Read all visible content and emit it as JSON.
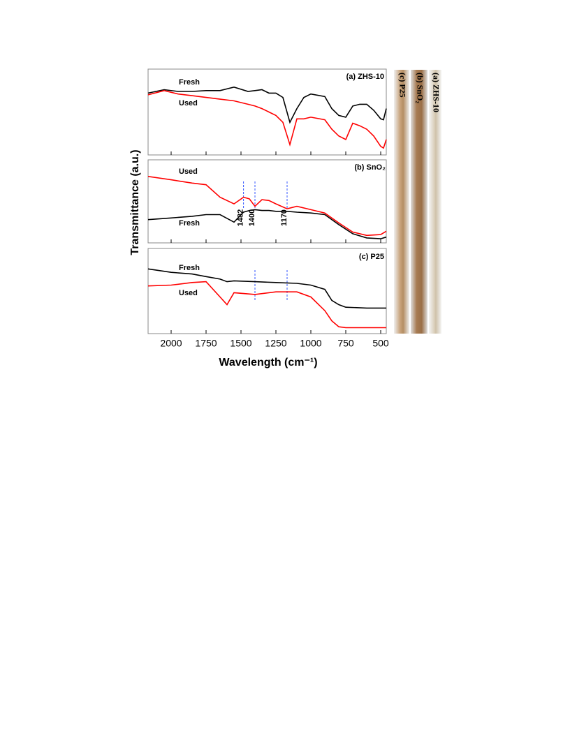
{
  "figure": {
    "xlabel": "Wavelength (cm⁻¹)",
    "ylabel": "Transmittance (a.u.)"
  },
  "photos": {
    "labels": [
      "(c) P25",
      "(b) SnO₂",
      "(a) ZHS-10"
    ]
  },
  "chart_data": [
    {
      "type": "line",
      "title": "(a) ZHS-10",
      "x": [
        2165,
        2050,
        1950,
        1850,
        1750,
        1650,
        1550,
        1450,
        1400,
        1350,
        1300,
        1250,
        1200,
        1150,
        1100,
        1050,
        1000,
        900,
        850,
        800,
        750,
        700,
        650,
        600,
        550,
        500,
        480,
        460
      ],
      "series": [
        {
          "name": "Fresh",
          "color": "#000000",
          "values": [
            0.72,
            0.76,
            0.74,
            0.74,
            0.75,
            0.75,
            0.79,
            0.74,
            0.75,
            0.76,
            0.72,
            0.72,
            0.67,
            0.38,
            0.54,
            0.67,
            0.71,
            0.68,
            0.54,
            0.46,
            0.44,
            0.57,
            0.59,
            0.59,
            0.52,
            0.42,
            0.41,
            0.54
          ]
        },
        {
          "name": "Used",
          "color": "#ff0000",
          "values": [
            0.7,
            0.75,
            0.71,
            0.69,
            0.67,
            0.65,
            0.63,
            0.59,
            0.57,
            0.54,
            0.5,
            0.46,
            0.38,
            0.12,
            0.42,
            0.42,
            0.44,
            0.41,
            0.3,
            0.22,
            0.18,
            0.37,
            0.34,
            0.3,
            0.22,
            0.1,
            0.08,
            0.18
          ]
        }
      ],
      "xlim": [
        2165,
        460
      ],
      "ylim": [
        0,
        1
      ],
      "xticks": [
        2000,
        1750,
        1500,
        1250,
        1000,
        750,
        500
      ]
    },
    {
      "type": "line",
      "title": "(b) SnO₂",
      "x": [
        2165,
        2000,
        1850,
        1750,
        1650,
        1550,
        1482,
        1440,
        1400,
        1350,
        1300,
        1250,
        1170,
        1100,
        1000,
        900,
        800,
        700,
        600,
        500,
        460
      ],
      "series": [
        {
          "name": "Used",
          "color": "#ff0000",
          "values": [
            0.8,
            0.76,
            0.72,
            0.7,
            0.55,
            0.47,
            0.55,
            0.53,
            0.44,
            0.52,
            0.51,
            0.47,
            0.41,
            0.44,
            0.4,
            0.36,
            0.24,
            0.13,
            0.09,
            0.1,
            0.14
          ]
        },
        {
          "name": "Fresh",
          "color": "#000000",
          "values": [
            0.28,
            0.3,
            0.32,
            0.34,
            0.34,
            0.25,
            0.37,
            0.39,
            0.4,
            0.39,
            0.39,
            0.38,
            0.38,
            0.37,
            0.36,
            0.34,
            0.22,
            0.11,
            0.06,
            0.05,
            0.07
          ]
        }
      ],
      "markers": [
        1482,
        1400,
        1170
      ],
      "xlim": [
        2165,
        460
      ],
      "ylim": [
        0,
        1
      ],
      "xticks": [
        2000,
        1750,
        1500,
        1250,
        1000,
        750,
        500
      ]
    },
    {
      "type": "line",
      "title": "(c) P25",
      "x": [
        2165,
        2000,
        1850,
        1750,
        1650,
        1600,
        1550,
        1400,
        1250,
        1100,
        1000,
        900,
        850,
        800,
        750,
        600,
        460
      ],
      "series": [
        {
          "name": "Fresh",
          "color": "#000000",
          "values": [
            0.76,
            0.72,
            0.7,
            0.67,
            0.64,
            0.61,
            0.62,
            0.61,
            0.6,
            0.59,
            0.57,
            0.52,
            0.39,
            0.34,
            0.31,
            0.3,
            0.3
          ]
        },
        {
          "name": "Used",
          "color": "#ff0000",
          "values": [
            0.56,
            0.57,
            0.6,
            0.61,
            0.43,
            0.34,
            0.48,
            0.46,
            0.49,
            0.49,
            0.43,
            0.27,
            0.15,
            0.08,
            0.07,
            0.07,
            0.07
          ]
        }
      ],
      "markers": [
        1400,
        1170
      ],
      "xlim": [
        2165,
        460
      ],
      "ylim": [
        0,
        1
      ],
      "xticks": [
        2000,
        1750,
        1500,
        1250,
        1000,
        750,
        500
      ]
    }
  ]
}
